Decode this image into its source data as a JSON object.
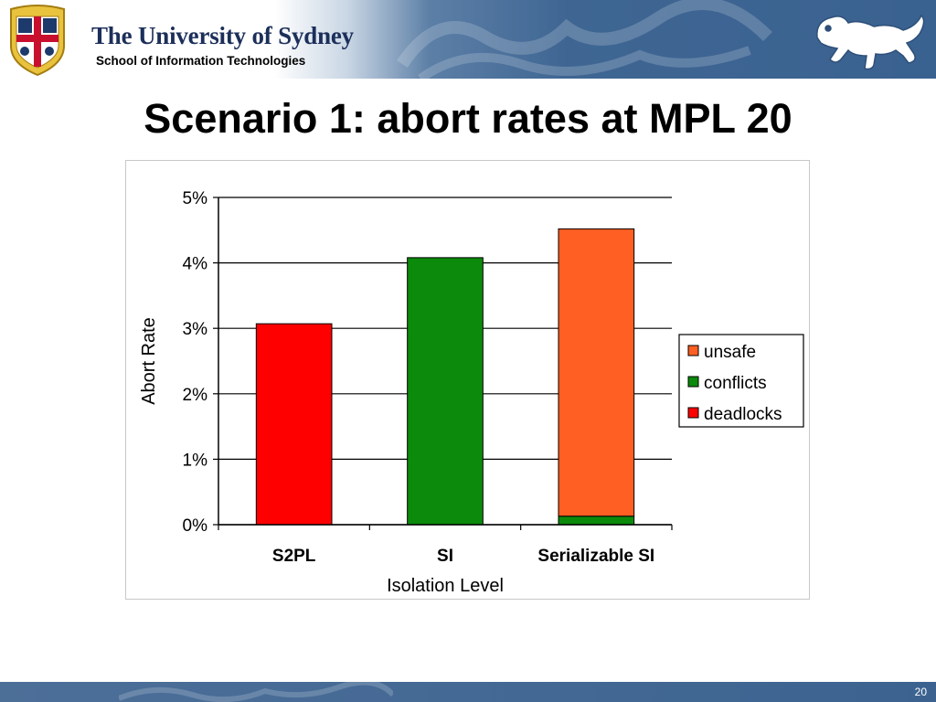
{
  "header": {
    "university": "The University of Sydney",
    "school": "School of Information Technologies"
  },
  "slide": {
    "title": "Scenario 1: abort rates at MPL 20",
    "page_number": "20"
  },
  "colors": {
    "header_blue": "#3f6693",
    "unsafe": "#ff5f22",
    "conflicts": "#0b8a0b",
    "deadlocks": "#ff0000"
  },
  "chart_data": {
    "type": "bar",
    "stacked": true,
    "title": "",
    "xlabel": "Isolation Level",
    "ylabel": "Abort Rate",
    "categories": [
      "S2PL",
      "SI",
      "Serializable SI"
    ],
    "ylim": [
      0,
      5
    ],
    "yticks": [
      "0%",
      "1%",
      "2%",
      "3%",
      "4%",
      "5%"
    ],
    "series": [
      {
        "name": "deadlocks",
        "color": "#ff0000",
        "values": [
          3.07,
          0,
          0
        ]
      },
      {
        "name": "conflicts",
        "color": "#0b8a0b",
        "values": [
          0,
          4.08,
          0.13
        ]
      },
      {
        "name": "unsafe",
        "color": "#ff5f22",
        "values": [
          0,
          0,
          4.39
        ]
      }
    ],
    "legend_order": [
      "unsafe",
      "conflicts",
      "deadlocks"
    ],
    "legend_position": "right",
    "grid": true
  }
}
